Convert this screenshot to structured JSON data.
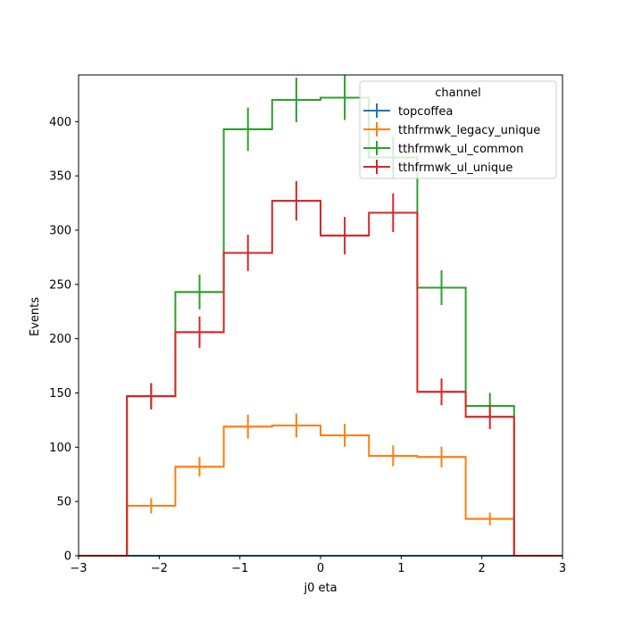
{
  "chart_data": {
    "type": "histogram-step",
    "xlabel": "j0 eta",
    "ylabel": "Events",
    "xlim": [
      -3,
      3
    ],
    "ylim": [
      0,
      443
    ],
    "x_ticks": [
      -3,
      -2,
      -1,
      0,
      1,
      2,
      3
    ],
    "x_tick_labels": [
      "−3",
      "−2",
      "−1",
      "0",
      "1",
      "2",
      "3"
    ],
    "y_ticks": [
      0,
      50,
      100,
      150,
      200,
      250,
      300,
      350,
      400
    ],
    "y_tick_labels": [
      "0",
      "50",
      "100",
      "150",
      "200",
      "250",
      "300",
      "350",
      "400"
    ],
    "bin_edges": [
      -3,
      -2.4,
      -1.8,
      -1.2,
      -0.6,
      0,
      0.6,
      1.2,
      1.8,
      2.4,
      3
    ],
    "legend": {
      "title": "channel",
      "placement": "top-right"
    },
    "series": [
      {
        "name": "topcoffea",
        "color": "#1f77b4",
        "values": [
          0,
          0,
          0,
          0,
          0,
          0,
          0,
          0,
          0,
          0
        ],
        "errors": [
          0,
          0,
          0,
          0,
          0,
          0,
          0,
          0,
          0,
          0
        ]
      },
      {
        "name": "tthfrmwk_legacy_unique",
        "color": "#ff7f0e",
        "values": [
          0,
          46,
          82,
          119,
          120,
          111,
          92,
          91,
          34,
          0
        ],
        "errors": [
          0,
          7,
          9,
          11,
          11,
          10.5,
          9.6,
          9.5,
          5.8,
          0
        ]
      },
      {
        "name": "tthfrmwk_ul_common",
        "color": "#2ca02c",
        "values": [
          0,
          147,
          243,
          393,
          420,
          422,
          367,
          247,
          138,
          0
        ],
        "errors": [
          0,
          12,
          16,
          20,
          20.5,
          20.5,
          19,
          16,
          12,
          0
        ]
      },
      {
        "name": "tthfrmwk_ul_unique",
        "color": "#d62728",
        "values": [
          0,
          147,
          206,
          279,
          327,
          295,
          316,
          151,
          128,
          0
        ],
        "errors": [
          0,
          12.1,
          14.4,
          16.7,
          18.1,
          17.2,
          17.8,
          12.3,
          11.3,
          0
        ]
      }
    ]
  }
}
